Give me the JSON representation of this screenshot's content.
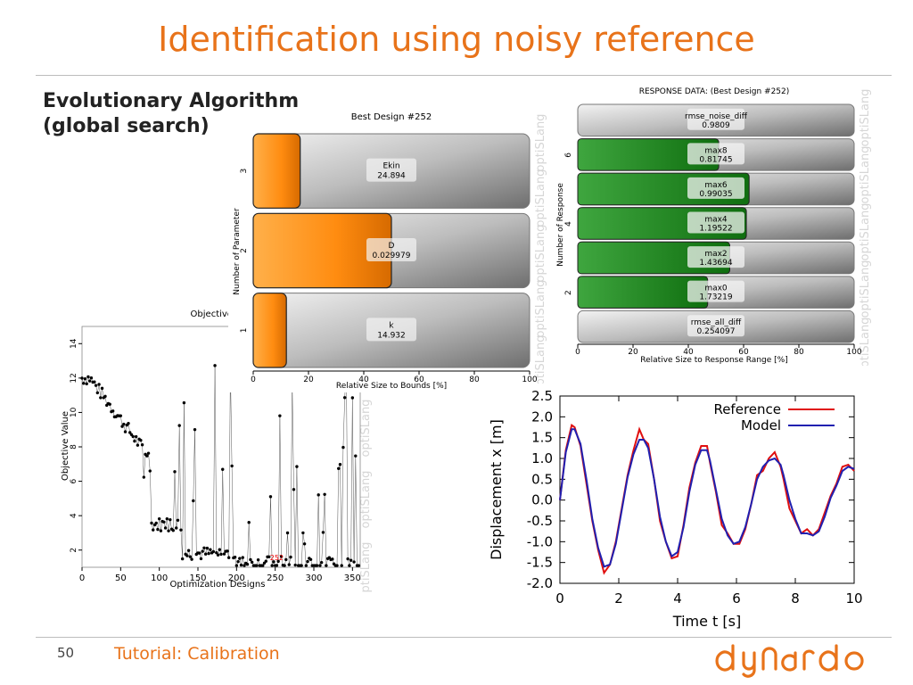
{
  "slide": {
    "title": "Identification using noisy reference",
    "subtitle_line1": "Evolutionary Algorithm",
    "subtitle_line2": "(global search)",
    "page_number": "50",
    "footer": "Tutorial: Calibration",
    "logo_text": "dynardo",
    "watermark": "optiSLang",
    "accent_color": "#e8731a"
  },
  "chart_data": [
    {
      "id": "objective-history",
      "type": "scatter",
      "title": "Objective Hi",
      "xlabel": "Optimization Designs",
      "ylabel": "Objective Value",
      "xlim": [
        0,
        360
      ],
      "ylim": [
        1,
        15
      ],
      "x_ticks": [
        "0",
        "50",
        "100",
        "150",
        "200",
        "250",
        "300",
        "350"
      ],
      "y_ticks": [
        "2",
        "4",
        "6",
        "8",
        "10",
        "12",
        "14"
      ],
      "best_label": "252",
      "best_point": [
        252,
        1.25
      ]
    },
    {
      "id": "best-design-params",
      "type": "bar",
      "title": "Best Design #252",
      "xlabel": "Relative Size to Bounds [%]",
      "ylabel": "Number of Parameter",
      "xlim": [
        0,
        100
      ],
      "x_ticks": [
        "0",
        "20",
        "40",
        "60",
        "80",
        "100"
      ],
      "categories": [
        "3",
        "2",
        "1"
      ],
      "bars": [
        {
          "category": "3",
          "name": "Ekin",
          "value_text": "24.894",
          "percent": 17
        },
        {
          "category": "2",
          "name": "D",
          "value_text": "0.029979",
          "percent": 50
        },
        {
          "category": "1",
          "name": "k",
          "value_text": "14.932",
          "percent": 12
        }
      ]
    },
    {
      "id": "response-data",
      "type": "bar",
      "title": "RESPONSE DATA: (Best Design #252)",
      "xlabel": "Relative Size to Response Range [%]",
      "ylabel": "Number of Response",
      "xlim": [
        0,
        100
      ],
      "x_ticks": [
        "0",
        "20",
        "40",
        "60",
        "80",
        "100"
      ],
      "y_ticks": [
        "2",
        "4",
        "6"
      ],
      "bars": [
        {
          "name": "rmse_noise_diff",
          "value_text": "0.9809",
          "percent": 0,
          "color": "gray"
        },
        {
          "name": "max8",
          "value_text": "0.81745",
          "percent": 51,
          "color": "green"
        },
        {
          "name": "max6",
          "value_text": "0.99035",
          "percent": 62,
          "color": "green"
        },
        {
          "name": "max4",
          "value_text": "1.19522",
          "percent": 61,
          "color": "green"
        },
        {
          "name": "max2",
          "value_text": "1.43694",
          "percent": 55,
          "color": "green"
        },
        {
          "name": "max0",
          "value_text": "1.73219",
          "percent": 47,
          "color": "green"
        },
        {
          "name": "rmse_all_diff",
          "value_text": "0.254097",
          "percent": 0,
          "color": "gray"
        }
      ]
    },
    {
      "id": "displacement-time",
      "type": "line",
      "xlabel": "Time t [s]",
      "ylabel": "Displacement x [m]",
      "xlim": [
        0,
        10
      ],
      "ylim": [
        -2.0,
        2.5
      ],
      "x_ticks": [
        "0",
        "2",
        "4",
        "6",
        "8",
        "10"
      ],
      "y_ticks": [
        "2.5",
        "2.0",
        "1.5",
        "1.0",
        "0.5",
        "0.0",
        "-0.5",
        "-1.0",
        "-1.5",
        "-2.0"
      ],
      "series": [
        {
          "name": "Reference",
          "color": "#e01010",
          "x": [
            0,
            0.2,
            0.4,
            0.5,
            0.7,
            0.9,
            1.1,
            1.3,
            1.5,
            1.7,
            1.9,
            2.1,
            2.3,
            2.5,
            2.7,
            2.85,
            3.0,
            3.2,
            3.4,
            3.6,
            3.8,
            4.0,
            4.2,
            4.4,
            4.6,
            4.8,
            5.0,
            5.1,
            5.3,
            5.5,
            5.7,
            5.9,
            6.1,
            6.3,
            6.5,
            6.7,
            6.9,
            7.1,
            7.3,
            7.5,
            7.6,
            7.8,
            8.0,
            8.2,
            8.4,
            8.6,
            8.8,
            9.0,
            9.2,
            9.4,
            9.6,
            9.8,
            10.0
          ],
          "y": [
            0.0,
            1.2,
            1.8,
            1.75,
            1.3,
            0.4,
            -0.5,
            -1.2,
            -1.75,
            -1.55,
            -1.0,
            -0.2,
            0.6,
            1.2,
            1.7,
            1.45,
            1.35,
            0.5,
            -0.5,
            -1.0,
            -1.4,
            -1.35,
            -0.6,
            0.3,
            0.9,
            1.3,
            1.3,
            0.9,
            0.2,
            -0.6,
            -0.8,
            -1.05,
            -1.05,
            -0.7,
            -0.1,
            0.6,
            0.7,
            1.0,
            1.15,
            0.8,
            0.5,
            -0.2,
            -0.5,
            -0.8,
            -0.7,
            -0.85,
            -0.7,
            -0.3,
            0.1,
            0.4,
            0.8,
            0.85,
            0.7
          ]
        },
        {
          "name": "Model",
          "color": "#2020b0",
          "x": [
            0,
            0.2,
            0.4,
            0.5,
            0.7,
            0.9,
            1.1,
            1.3,
            1.5,
            1.7,
            1.9,
            2.1,
            2.3,
            2.5,
            2.7,
            2.85,
            3.0,
            3.2,
            3.4,
            3.6,
            3.8,
            4.0,
            4.2,
            4.4,
            4.6,
            4.8,
            5.0,
            5.1,
            5.3,
            5.5,
            5.7,
            5.9,
            6.1,
            6.3,
            6.5,
            6.7,
            6.9,
            7.1,
            7.3,
            7.5,
            7.6,
            7.8,
            8.0,
            8.2,
            8.4,
            8.6,
            8.8,
            9.0,
            9.2,
            9.4,
            9.6,
            9.8,
            10.0
          ],
          "y": [
            0.0,
            1.15,
            1.7,
            1.7,
            1.35,
            0.5,
            -0.45,
            -1.15,
            -1.6,
            -1.55,
            -1.05,
            -0.25,
            0.55,
            1.1,
            1.45,
            1.45,
            1.25,
            0.5,
            -0.4,
            -1.0,
            -1.35,
            -1.25,
            -0.65,
            0.2,
            0.85,
            1.2,
            1.2,
            0.95,
            0.25,
            -0.45,
            -0.85,
            -1.05,
            -1.0,
            -0.65,
            -0.1,
            0.5,
            0.8,
            0.95,
            1.0,
            0.85,
            0.6,
            0.0,
            -0.45,
            -0.8,
            -0.8,
            -0.85,
            -0.75,
            -0.4,
            0.05,
            0.35,
            0.7,
            0.8,
            0.75
          ]
        }
      ]
    }
  ]
}
